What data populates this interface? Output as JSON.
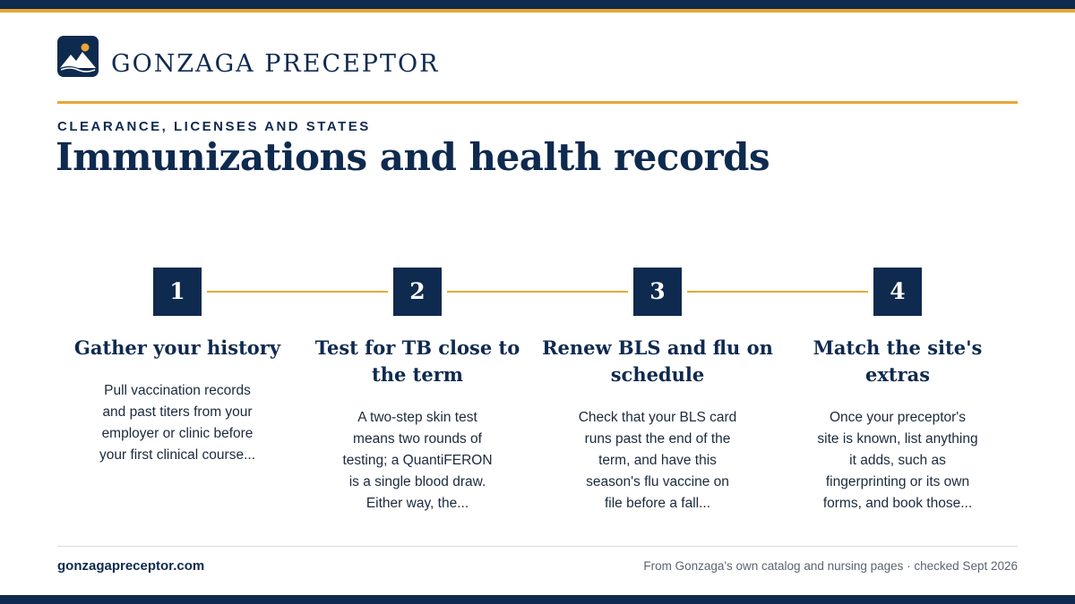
{
  "brand": {
    "name": "GONZAGA PRECEPTOR",
    "logo_icon": "mountain-sun-icon"
  },
  "colors": {
    "navy": "#0f2a4f",
    "gold": "#e8a736"
  },
  "header": {
    "eyebrow": "CLEARANCE, LICENSES AND STATES",
    "title": "Immunizations and health records"
  },
  "steps": [
    {
      "number": "1",
      "title": "Gather your history",
      "description": "Pull vaccination records and past titers from your employer or clinic before your first clinical course..."
    },
    {
      "number": "2",
      "title": "Test for TB close to the term",
      "description": "A two-step skin test means two rounds of testing; a QuantiFERON is a single blood draw. Either way, the..."
    },
    {
      "number": "3",
      "title": "Renew BLS and flu on schedule",
      "description": "Check that your BLS card runs past the end of the term, and have this season's flu vaccine on file before a fall..."
    },
    {
      "number": "4",
      "title": "Match the site's extras",
      "description": "Once your preceptor's site is known, list anything it adds, such as fingerprinting or its own forms, and book those..."
    }
  ],
  "footer": {
    "url": "gonzagapreceptor.com",
    "source": "From Gonzaga's own catalog and nursing pages · checked Sept 2026"
  }
}
